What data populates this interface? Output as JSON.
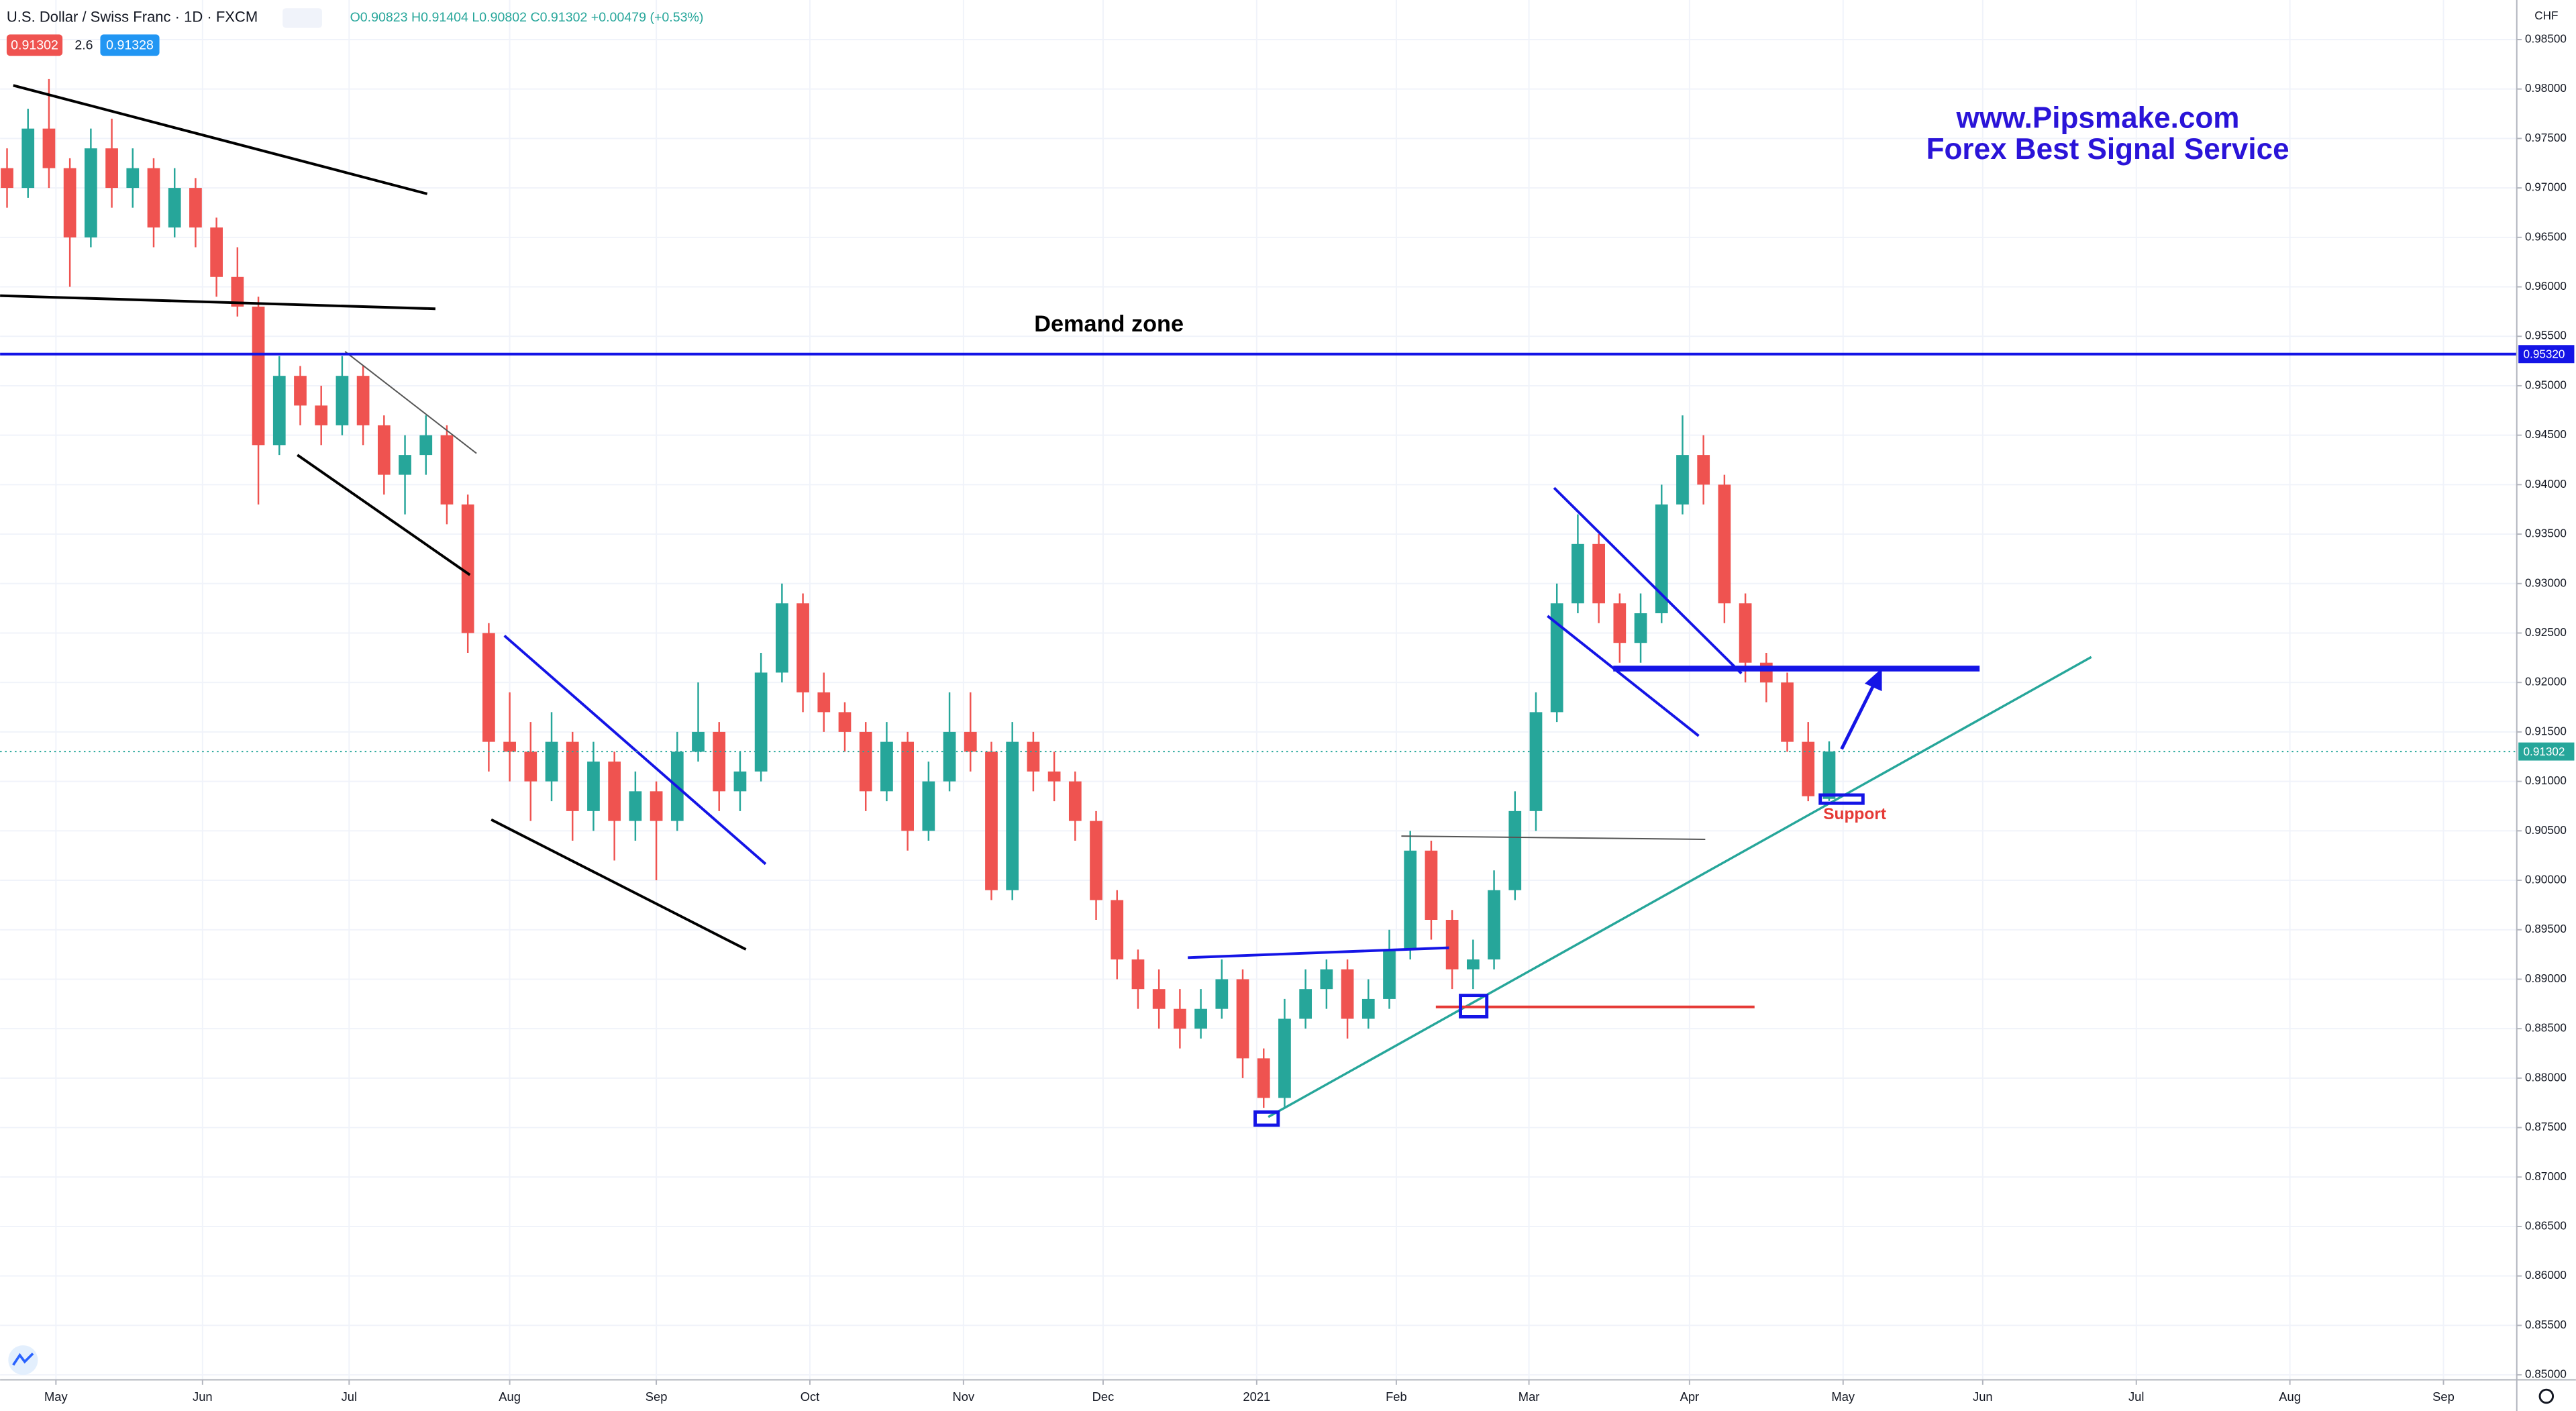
{
  "chart_data": {
    "type": "candlestick",
    "symbol": "U.S. Dollar / Swiss Franc · 1D · FXCM",
    "ohlc_legend": "O0.90823 H0.91404 L0.90802 C0.91302 +0.00479 (+0.53%)",
    "badges": [
      "0.91302",
      "2.6",
      "0.91328"
    ],
    "currency": "CHF",
    "annotations": {
      "site": "www.Pipsmake.com",
      "service": "Forex Best Signal Service",
      "demand": "Demand zone",
      "support": "Support"
    },
    "up_color": "#26a69a",
    "down_color": "#ef5350",
    "grid": true,
    "xlim": [
      -8,
      352.5
    ],
    "xticks": [
      {
        "value": 0,
        "label": "May"
      },
      {
        "value": 21,
        "label": "Jun"
      },
      {
        "value": 42,
        "label": "Jul"
      },
      {
        "value": 65,
        "label": "Aug"
      },
      {
        "value": 86,
        "label": "Sep"
      },
      {
        "value": 108,
        "label": "Oct"
      },
      {
        "value": 130,
        "label": "Nov"
      },
      {
        "value": 150,
        "label": "Dec"
      },
      {
        "value": 172,
        "label": "2021"
      },
      {
        "value": 192,
        "label": "Feb"
      },
      {
        "value": 211,
        "label": "Mar"
      },
      {
        "value": 234,
        "label": "Apr"
      },
      {
        "value": 256,
        "label": "May"
      },
      {
        "value": 276,
        "label": "Jun"
      },
      {
        "value": 298,
        "label": "Jul"
      },
      {
        "value": 320,
        "label": "Aug"
      },
      {
        "value": 342,
        "label": "Sep"
      }
    ],
    "ylim": [
      0.8495,
      0.989
    ],
    "yticks": [
      {
        "value": 0.85,
        "label": "0.85000"
      },
      {
        "value": 0.855,
        "label": "0.85500"
      },
      {
        "value": 0.86,
        "label": "0.86000"
      },
      {
        "value": 0.865,
        "label": "0.86500"
      },
      {
        "value": 0.87,
        "label": "0.87000"
      },
      {
        "value": 0.875,
        "label": "0.87500"
      },
      {
        "value": 0.88,
        "label": "0.88000"
      },
      {
        "value": 0.885,
        "label": "0.88500"
      },
      {
        "value": 0.89,
        "label": "0.89000"
      },
      {
        "value": 0.895,
        "label": "0.89500"
      },
      {
        "value": 0.9,
        "label": "0.90000"
      },
      {
        "value": 0.905,
        "label": "0.90500"
      },
      {
        "value": 0.91,
        "label": "0.91000"
      },
      {
        "value": 0.915,
        "label": "0.91500"
      },
      {
        "value": 0.92,
        "label": "0.92000"
      },
      {
        "value": 0.925,
        "label": "0.92500"
      },
      {
        "value": 0.93,
        "label": "0.93000"
      },
      {
        "value": 0.935,
        "label": "0.93500"
      },
      {
        "value": 0.94,
        "label": "0.94000"
      },
      {
        "value": 0.945,
        "label": "0.94500"
      },
      {
        "value": 0.95,
        "label": "0.95000"
      },
      {
        "value": 0.955,
        "label": "0.95500"
      },
      {
        "value": 0.96,
        "label": "0.96000"
      },
      {
        "value": 0.965,
        "label": "0.96500"
      },
      {
        "value": 0.97,
        "label": "0.97000"
      },
      {
        "value": 0.975,
        "label": "0.97500"
      },
      {
        "value": 0.98,
        "label": "0.98000"
      },
      {
        "value": 0.985,
        "label": "0.98500"
      }
    ],
    "price_lines": [
      {
        "value": 0.9532,
        "label": "0.95320",
        "color": "#1414e6"
      },
      {
        "value": 0.91302,
        "label": "0.91302",
        "color": "#26a69a"
      }
    ],
    "x": [
      -7,
      -4,
      -1,
      2,
      5,
      8,
      11,
      14,
      17,
      20,
      23,
      26,
      29,
      32,
      35,
      38,
      41,
      44,
      47,
      50,
      53,
      56,
      59,
      62,
      65,
      68,
      71,
      74,
      77,
      80,
      83,
      86,
      89,
      92,
      95,
      98,
      101,
      104,
      107,
      110,
      113,
      116,
      119,
      122,
      125,
      128,
      131,
      134,
      137,
      140,
      143,
      146,
      149,
      152,
      155,
      158,
      161,
      164,
      167,
      170,
      173,
      176,
      179,
      182,
      185,
      188,
      191,
      194,
      197,
      200,
      203,
      206,
      209,
      212,
      215,
      218,
      221,
      224,
      227,
      230,
      233,
      236,
      239,
      242,
      245,
      248,
      251,
      254
    ],
    "open": [
      0.972,
      0.97,
      0.976,
      0.972,
      0.965,
      0.974,
      0.97,
      0.972,
      0.966,
      0.97,
      0.966,
      0.961,
      0.958,
      0.944,
      0.951,
      0.948,
      0.946,
      0.951,
      0.946,
      0.941,
      0.943,
      0.945,
      0.938,
      0.925,
      0.914,
      0.913,
      0.91,
      0.914,
      0.907,
      0.912,
      0.906,
      0.909,
      0.906,
      0.913,
      0.915,
      0.909,
      0.911,
      0.921,
      0.928,
      0.919,
      0.917,
      0.915,
      0.909,
      0.914,
      0.905,
      0.91,
      0.915,
      0.913,
      0.899,
      0.914,
      0.911,
      0.91,
      0.906,
      0.898,
      0.892,
      0.889,
      0.887,
      0.885,
      0.887,
      0.89,
      0.882,
      0.878,
      0.886,
      0.889,
      0.891,
      0.886,
      0.888,
      0.893,
      0.903,
      0.896,
      0.891,
      0.892,
      0.899,
      0.907,
      0.917,
      0.928,
      0.934,
      0.928,
      0.924,
      0.927,
      0.938,
      0.943,
      0.94,
      0.928,
      0.922,
      0.92,
      0.914,
      0.90823
    ],
    "high": [
      0.974,
      0.978,
      0.981,
      0.973,
      0.976,
      0.977,
      0.974,
      0.973,
      0.972,
      0.971,
      0.967,
      0.964,
      0.959,
      0.953,
      0.952,
      0.95,
      0.953,
      0.952,
      0.947,
      0.945,
      0.947,
      0.946,
      0.939,
      0.926,
      0.919,
      0.916,
      0.917,
      0.915,
      0.914,
      0.913,
      0.911,
      0.91,
      0.915,
      0.92,
      0.916,
      0.913,
      0.923,
      0.93,
      0.929,
      0.921,
      0.918,
      0.916,
      0.916,
      0.915,
      0.912,
      0.919,
      0.919,
      0.914,
      0.916,
      0.915,
      0.913,
      0.911,
      0.907,
      0.899,
      0.893,
      0.891,
      0.889,
      0.889,
      0.892,
      0.891,
      0.883,
      0.888,
      0.891,
      0.892,
      0.892,
      0.89,
      0.895,
      0.905,
      0.904,
      0.897,
      0.894,
      0.901,
      0.909,
      0.919,
      0.93,
      0.937,
      0.935,
      0.929,
      0.929,
      0.94,
      0.947,
      0.945,
      0.941,
      0.929,
      0.923,
      0.921,
      0.916,
      0.91404
    ],
    "low": [
      0.968,
      0.969,
      0.97,
      0.96,
      0.964,
      0.968,
      0.968,
      0.964,
      0.965,
      0.964,
      0.959,
      0.957,
      0.938,
      0.943,
      0.946,
      0.944,
      0.945,
      0.944,
      0.939,
      0.937,
      0.941,
      0.936,
      0.923,
      0.911,
      0.91,
      0.906,
      0.908,
      0.904,
      0.905,
      0.902,
      0.904,
      0.9,
      0.905,
      0.912,
      0.907,
      0.907,
      0.91,
      0.92,
      0.917,
      0.915,
      0.913,
      0.907,
      0.908,
      0.903,
      0.904,
      0.909,
      0.911,
      0.898,
      0.898,
      0.909,
      0.908,
      0.904,
      0.896,
      0.89,
      0.887,
      0.885,
      0.883,
      0.884,
      0.886,
      0.88,
      0.877,
      0.877,
      0.885,
      0.887,
      0.884,
      0.885,
      0.887,
      0.892,
      0.894,
      0.889,
      0.889,
      0.891,
      0.898,
      0.905,
      0.916,
      0.927,
      0.926,
      0.922,
      0.922,
      0.926,
      0.937,
      0.938,
      0.926,
      0.92,
      0.918,
      0.913,
      0.908,
      0.90802
    ],
    "close": [
      0.97,
      0.976,
      0.972,
      0.965,
      0.974,
      0.97,
      0.972,
      0.966,
      0.97,
      0.966,
      0.961,
      0.958,
      0.944,
      0.951,
      0.948,
      0.946,
      0.951,
      0.946,
      0.941,
      0.943,
      0.945,
      0.938,
      0.925,
      0.914,
      0.913,
      0.91,
      0.914,
      0.907,
      0.912,
      0.906,
      0.909,
      0.906,
      0.913,
      0.915,
      0.909,
      0.911,
      0.921,
      0.928,
      0.919,
      0.917,
      0.915,
      0.909,
      0.914,
      0.905,
      0.91,
      0.915,
      0.913,
      0.899,
      0.914,
      0.911,
      0.91,
      0.906,
      0.898,
      0.892,
      0.889,
      0.887,
      0.885,
      0.887,
      0.89,
      0.882,
      0.878,
      0.886,
      0.889,
      0.891,
      0.886,
      0.888,
      0.893,
      0.903,
      0.896,
      0.891,
      0.892,
      0.899,
      0.907,
      0.917,
      0.928,
      0.934,
      0.928,
      0.924,
      0.927,
      0.938,
      0.943,
      0.94,
      0.928,
      0.922,
      0.92,
      0.914,
      0.9085,
      0.91302
    ]
  }
}
